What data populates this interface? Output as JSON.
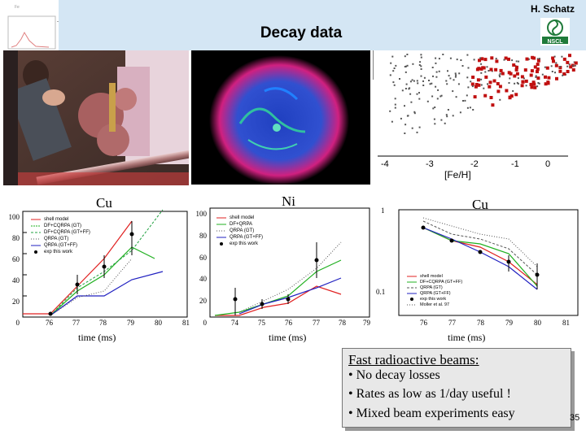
{
  "header": {
    "author": "H. Schatz",
    "title": "Decay data",
    "logo_text": "NSCL"
  },
  "nuclear_chart": {
    "axis_label": "[Fe/H]",
    "ticks": [
      "-4",
      "-3",
      "-2",
      "-1",
      "0"
    ]
  },
  "plots": [
    {
      "element": "Cu",
      "x_label": "time (ms)",
      "x_ticks": [
        "76",
        "77",
        "78",
        "79",
        "80",
        "81"
      ],
      "y_ticks": [
        "0",
        "20",
        "40",
        "60",
        "80",
        "100"
      ],
      "legend": [
        "shell model",
        "DF+CQRPA (GT)",
        "DF+CQRPA (GT+FF)",
        "QRPA (GT)",
        "QRPA (GT+FF)",
        "exp this work"
      ]
    },
    {
      "element": "Ni",
      "x_label": "time (ms)",
      "x_ticks": [
        "74",
        "75",
        "76",
        "77",
        "78",
        "79"
      ],
      "y_ticks": [
        "0",
        "20",
        "40",
        "60",
        "80",
        "100"
      ],
      "legend": [
        "shell model",
        "DF+QRPA",
        "QRPA (GT)",
        "QRPA (GT+FF)",
        "exp this work"
      ]
    },
    {
      "element": "Cu",
      "x_label": "time (ms)",
      "x_ticks": [
        "76",
        "77",
        "78",
        "79",
        "80",
        "81"
      ],
      "y_ticks": [
        "0.1",
        "1"
      ],
      "legend": [
        "shell model",
        "DF+CQRPA (GT+FF)",
        "QRPA (GT)",
        "QRPA (GT+FF)",
        "exp this work",
        "Moller et al. 97"
      ]
    }
  ],
  "callout": {
    "heading": "Fast radioactive beams:",
    "bullets": [
      "• No decay losses",
      "• Rates as low as 1/day useful !",
      "• Mixed beam experiments easy"
    ]
  },
  "slide_number": "35",
  "colors": {
    "header_band": "#d4e6f4",
    "callout_bg": "#e8e8e8"
  }
}
